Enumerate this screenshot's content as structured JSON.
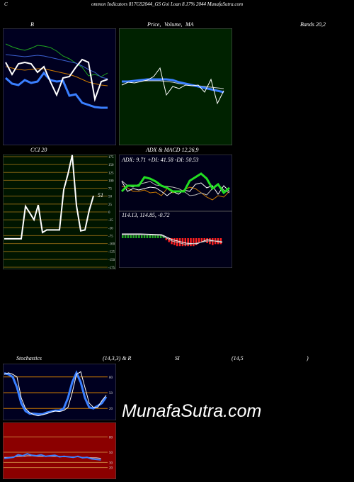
{
  "header": {
    "left": "C",
    "title": "ommon  Indicators  817GS2044_GS  Goi  Loan  8.17%  2044  MunafaSutra.com"
  },
  "labels": {
    "bollinger": "B",
    "price_ma_a": "Price,",
    "price_ma_b": "Volume,",
    "price_ma_c": "MA",
    "bands": "Bands 20,2",
    "cci": "CCI 20",
    "adx_macd": "ADX  & MACD 12,26,9",
    "stochastics": "Stochastics",
    "stoch_params": "(14,3,3) & R",
    "si": "SI",
    "rsi_params": "(14,5",
    "rsi_close": ")"
  },
  "watermark": "MunafaSutra.com",
  "colors": {
    "bollinger_bg": "#000020",
    "price_bg": "#002200",
    "cci_bg": "#001500",
    "cci_grid": "#806010",
    "adx_bg": "#000018",
    "rsi_bg": "#8b0000",
    "bb_upper": "#1fa61f",
    "bb_lower": "#cc7a00",
    "ma_blue": "#3a7fff",
    "adx_green": "#22dd22",
    "adx_orange": "#cc7a00",
    "macd_red": "#ff2020",
    "macd_green": "#22aa22"
  },
  "chart_data": [
    {
      "type": "line",
      "panel": "bollinger_bands",
      "series": [
        {
          "values": [
            62,
            66,
            69,
            71,
            68,
            64,
            65,
            67,
            72,
            79,
            83,
            89,
            95,
            107,
            105,
            108,
            103
          ]
        },
        {
          "values": [
            77,
            78,
            79,
            80,
            79,
            78,
            79,
            81,
            83,
            85,
            87,
            89,
            93,
            98,
            102,
            109,
            111
          ]
        },
        {
          "values": [
            94,
            96,
            98,
            99,
            98,
            97,
            97,
            99,
            101,
            103,
            105,
            108,
            112,
            116,
            118,
            120,
            121
          ]
        },
        {
          "values": [
            110,
            118,
            120,
            113,
            117,
            115,
            103,
            113,
            115,
            114,
            135,
            133,
            145,
            148,
            151,
            152,
            152
          ]
        },
        {
          "values": [
            88,
            105,
            90,
            88,
            90,
            102,
            94,
            115,
            134,
            110,
            108,
            95,
            84,
            88,
            140,
            115,
            112
          ]
        }
      ]
    },
    {
      "type": "line",
      "panel": "price_volume_ma",
      "series": [
        {
          "values": [
            120,
            116,
            117,
            115,
            113,
            108,
            96,
            134,
            122,
            125,
            120,
            121,
            120,
            130,
            112,
            146,
            128
          ]
        },
        {
          "values": [
            115,
            115,
            114,
            113,
            112,
            112,
            112,
            112,
            113,
            116,
            118,
            120,
            122,
            124,
            126,
            128,
            130
          ]
        },
        {
          "values": [
            116,
            115,
            114,
            114,
            114,
            114,
            114,
            115,
            116,
            118,
            119,
            120,
            121,
            122,
            123,
            124,
            125
          ]
        }
      ]
    },
    {
      "type": "line",
      "panel": "cci",
      "ticks": [
        175,
        150,
        125,
        100,
        75,
        50,
        25,
        0,
        -25,
        -50,
        -75,
        -100,
        -125,
        -150,
        -175
      ],
      "last_value_label": "51",
      "series": [
        {
          "values": [
            -85,
            -85,
            -85,
            -85,
            -85,
            18,
            -3,
            -25,
            22,
            -65,
            -57,
            -57,
            -57,
            -57,
            70,
            120,
            180,
            20,
            -60,
            -57,
            5,
            51
          ]
        }
      ]
    },
    {
      "type": "line",
      "panel": "adx",
      "readout": "ADX: 9.71  +DI: 41.58  -DI: 50.53",
      "series": [
        {
          "values": [
            270,
            262,
            262,
            262,
            250,
            252,
            256,
            262,
            265,
            270,
            270,
            270,
            255,
            250,
            245,
            252,
            266,
            260,
            272,
            265
          ]
        },
        {
          "values": [
            256,
            270,
            266,
            268,
            266,
            264,
            265,
            270,
            276,
            270,
            274,
            268,
            270,
            260,
            258,
            265,
            262,
            274,
            262,
            270
          ]
        },
        {
          "values": [
            263,
            265,
            270,
            270,
            268,
            272,
            271,
            276,
            266,
            272,
            270,
            268,
            264,
            266,
            272,
            278,
            282,
            276,
            278,
            270
          ]
        },
        {
          "values": [
            255,
            262,
            264,
            260,
            258,
            256,
            261,
            262,
            263,
            264,
            266,
            270,
            276,
            275,
            272,
            275,
            266,
            260,
            268,
            272
          ]
        }
      ]
    },
    {
      "type": "bar",
      "panel": "macd",
      "readout": "114.13,  114.85,  -0.72",
      "values": [
        0.3,
        0.3,
        0.3,
        0.3,
        0.3,
        0.3,
        0.3,
        0.3,
        0.3,
        0.3,
        0.3,
        0.3,
        0.3,
        0.3,
        0.3,
        0.3,
        -0.2,
        -0.4,
        -0.6,
        -0.7,
        -0.8,
        -0.8,
        -0.8,
        -0.8,
        -0.8,
        -0.8,
        -0.8,
        -0.7,
        -0.5,
        -0.4,
        -0.3,
        -0.5,
        -0.6,
        -0.7,
        -0.6,
        -0.6,
        -0.6
      ]
    },
    {
      "type": "line",
      "panel": "stochastics",
      "ticks": [
        80,
        50,
        20
      ],
      "series": [
        {
          "values": [
            85,
            88,
            85,
            80,
            40,
            20,
            12,
            8,
            6,
            8,
            10,
            13,
            15,
            14,
            16,
            22,
            50,
            85,
            90,
            60,
            30,
            22,
            22,
            35,
            45
          ]
        },
        {
          "values": [
            87,
            85,
            80,
            60,
            30,
            15,
            10,
            10,
            9,
            9,
            12,
            14,
            16,
            16,
            20,
            40,
            70,
            88,
            70,
            40,
            22,
            20,
            25,
            30,
            42
          ]
        }
      ]
    },
    {
      "type": "line",
      "panel": "rsi",
      "ticks": [
        80,
        50,
        30,
        20
      ],
      "series": [
        {
          "values": [
            38,
            39,
            40,
            45,
            43,
            47,
            44,
            43,
            45,
            42,
            43,
            44,
            41,
            42,
            41,
            40,
            42,
            39,
            40,
            37,
            36,
            35
          ]
        },
        {
          "values": [
            40,
            40,
            41,
            42,
            42,
            43,
            43,
            42,
            42,
            42,
            42,
            42,
            42,
            41,
            41,
            41,
            41,
            40,
            40,
            39,
            39,
            38
          ]
        }
      ]
    }
  ]
}
